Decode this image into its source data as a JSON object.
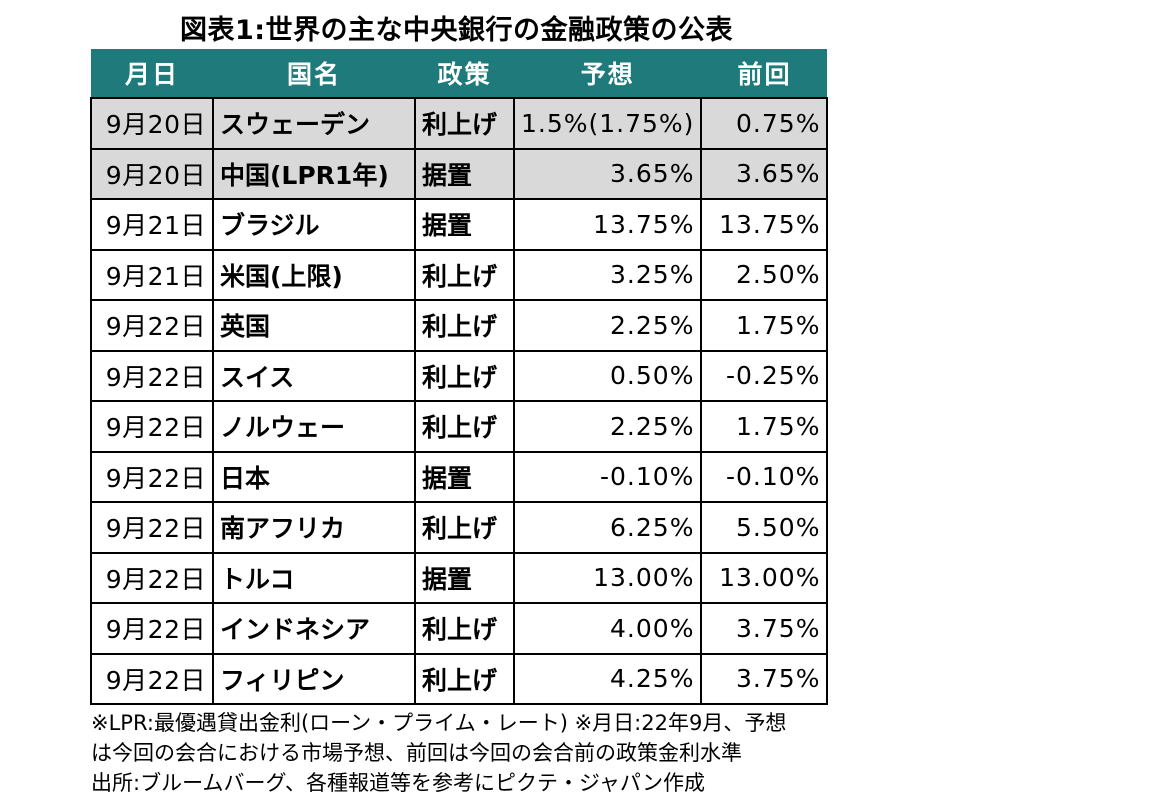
{
  "title": "図表1:世界の主な中央銀行の金融政策の公表",
  "table": {
    "headers": [
      "月日",
      "国名",
      "政策",
      "予想",
      "前回"
    ],
    "rows": [
      {
        "date": "9月20日",
        "country": "スウェーデン",
        "policy": "利上げ",
        "forecast": "1.5%(1.75%)",
        "previous": "0.75%",
        "shaded": true
      },
      {
        "date": "9月20日",
        "country": "中国(LPR1年)",
        "policy": "据置",
        "forecast": "3.65%",
        "previous": "3.65%",
        "shaded": true
      },
      {
        "date": "9月21日",
        "country": "ブラジル",
        "policy": "据置",
        "forecast": "13.75%",
        "previous": "13.75%",
        "shaded": false
      },
      {
        "date": "9月21日",
        "country": "米国(上限)",
        "policy": "利上げ",
        "forecast": "3.25%",
        "previous": "2.50%",
        "shaded": false
      },
      {
        "date": "9月22日",
        "country": "英国",
        "policy": "利上げ",
        "forecast": "2.25%",
        "previous": "1.75%",
        "shaded": false
      },
      {
        "date": "9月22日",
        "country": "スイス",
        "policy": "利上げ",
        "forecast": "0.50%",
        "previous": "-0.25%",
        "shaded": false
      },
      {
        "date": "9月22日",
        "country": "ノルウェー",
        "policy": "利上げ",
        "forecast": "2.25%",
        "previous": "1.75%",
        "shaded": false
      },
      {
        "date": "9月22日",
        "country": "日本",
        "policy": "据置",
        "forecast": "-0.10%",
        "previous": "-0.10%",
        "shaded": false
      },
      {
        "date": "9月22日",
        "country": "南アフリカ",
        "policy": "利上げ",
        "forecast": "6.25%",
        "previous": "5.50%",
        "shaded": false
      },
      {
        "date": "9月22日",
        "country": "トルコ",
        "policy": "据置",
        "forecast": "13.00%",
        "previous": "13.00%",
        "shaded": false
      },
      {
        "date": "9月22日",
        "country": "インドネシア",
        "policy": "利上げ",
        "forecast": "4.00%",
        "previous": "3.75%",
        "shaded": false
      },
      {
        "date": "9月22日",
        "country": "フィリピン",
        "policy": "利上げ",
        "forecast": "4.25%",
        "previous": "3.75%",
        "shaded": false
      }
    ]
  },
  "notes": [
    "※LPR:最優遇貸出金利(ローン・プライム・レート) ※月日:22年9月、予想",
    "は今回の会合における市場予想、前回は今回の会合前の政策金利水準",
    "出所:ブルームバーグ、各種報道等を参考にピクテ・ジャパン作成"
  ],
  "colors": {
    "header_bg": "#1f7b7b",
    "header_text": "#ffffff",
    "shaded_row": "#d9d9d9"
  }
}
